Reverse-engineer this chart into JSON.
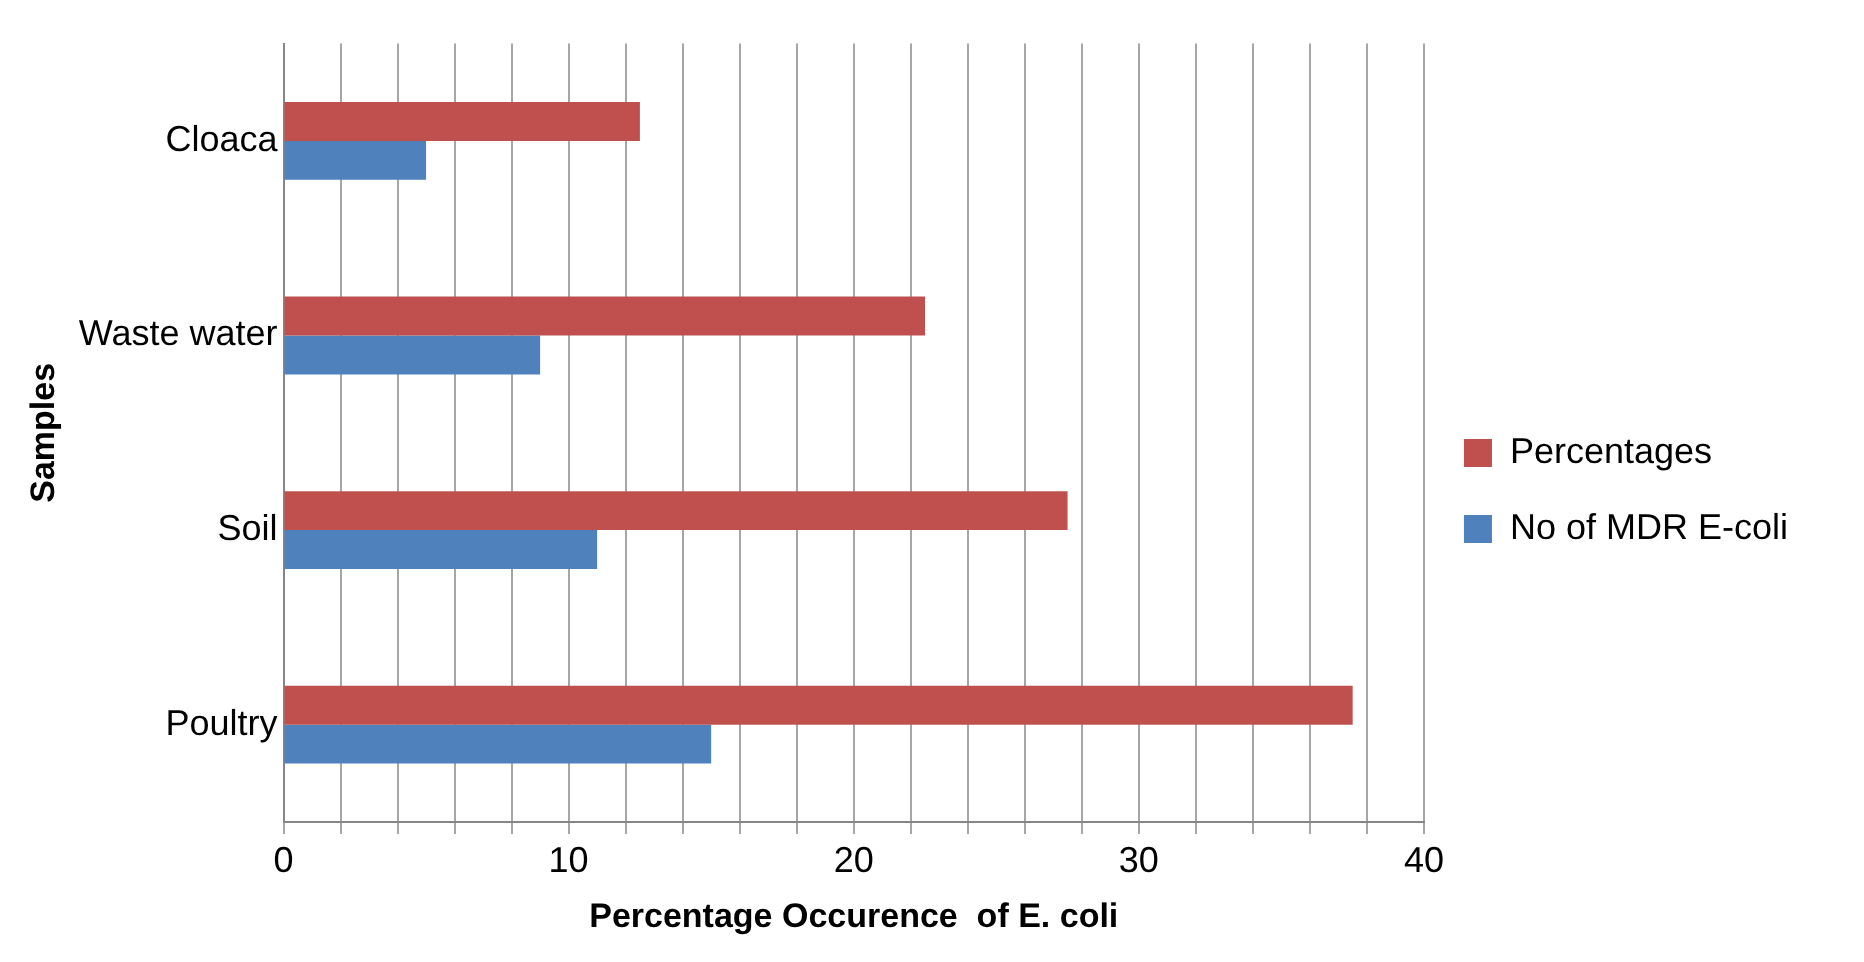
{
  "chart_data": {
    "type": "bar",
    "orientation": "horizontal",
    "xlabel": "Percentage Occurence  of E. coli",
    "ylabel": "Samples",
    "categories": [
      "Cloaca",
      "Waste water",
      "Soil",
      "Poultry"
    ],
    "series": [
      {
        "name": "Percentages",
        "color": "#c0504d",
        "values": [
          12.5,
          22.5,
          27.5,
          37.5
        ]
      },
      {
        "name": "No of MDR E-coli",
        "color": "#4f81bd",
        "values": [
          5,
          9,
          11,
          15
        ]
      }
    ],
    "xlim": [
      0,
      40
    ],
    "xticks": [
      0,
      {
        "value": 2,
        "label": null
      },
      {
        "value": 4,
        "label": null
      },
      {
        "value": 6,
        "label": null
      },
      {
        "value": 8,
        "label": null
      },
      10,
      {
        "value": 12,
        "label": null
      },
      {
        "value": 14,
        "label": null
      },
      {
        "value": 16,
        "label": null
      },
      {
        "value": 18,
        "label": null
      },
      20,
      {
        "value": 22,
        "label": null
      },
      {
        "value": 24,
        "label": null
      },
      {
        "value": 26,
        "label": null
      },
      {
        "value": 28,
        "label": null
      },
      30,
      {
        "value": 32,
        "label": null
      },
      {
        "value": 34,
        "label": null
      },
      {
        "value": 36,
        "label": null
      },
      {
        "value": 38,
        "label": null
      },
      40
    ],
    "grid": "x",
    "legend": "right"
  }
}
